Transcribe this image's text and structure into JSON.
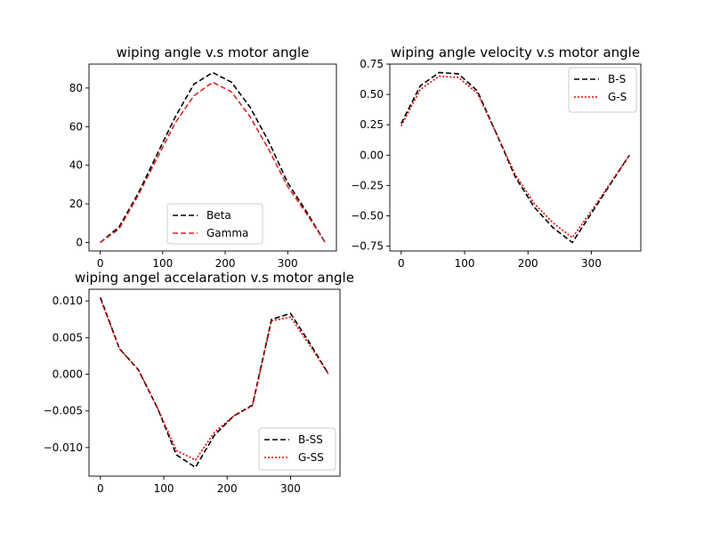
{
  "chart_data": [
    {
      "type": "line",
      "title": "wiping angle v.s motor angle",
      "xlabel": "",
      "ylabel": "",
      "xlim": [
        -18,
        378
      ],
      "ylim": [
        -4.4,
        92.4
      ],
      "xticks": [
        0,
        100,
        200,
        300
      ],
      "yticks": [
        0,
        20,
        40,
        60,
        80
      ],
      "tick_labels_x": [
        "0",
        "100",
        "200",
        "300"
      ],
      "tick_labels_y": [
        "0",
        "20",
        "40",
        "60",
        "80"
      ],
      "legend": "lower-center",
      "x": [
        0,
        30,
        60,
        90,
        120,
        150,
        180,
        210,
        240,
        270,
        300,
        330,
        360
      ],
      "series": [
        {
          "name": "Beta",
          "color": "#000000",
          "dash": "dashed",
          "values": [
            0,
            8,
            25,
            45,
            65,
            82,
            88,
            83,
            70,
            52,
            31,
            16,
            0
          ]
        },
        {
          "name": "Gamma",
          "color": "#d62728",
          "dash": "dashed",
          "values": [
            0,
            7,
            24,
            43,
            62,
            76,
            83,
            78,
            65,
            48,
            29,
            15,
            0
          ]
        }
      ]
    },
    {
      "type": "line",
      "title": "wiping angle velocity v.s motor angle",
      "xlabel": "",
      "ylabel": "",
      "xlim": [
        -18,
        378
      ],
      "ylim": [
        -0.79,
        0.75
      ],
      "xticks": [
        0,
        100,
        200,
        300
      ],
      "yticks": [
        0.75,
        0.5,
        0.25,
        0.0,
        -0.25,
        -0.5,
        -0.75
      ],
      "tick_labels_x": [
        "0",
        "100",
        "200",
        "300"
      ],
      "tick_labels_y": [
        "0.75",
        "0.50",
        "0.25",
        "0.00",
        "−0.25",
        "−0.50",
        "−0.75"
      ],
      "legend": "upper-right",
      "x": [
        0,
        30,
        60,
        90,
        120,
        150,
        180,
        210,
        240,
        270,
        300,
        330,
        360
      ],
      "series": [
        {
          "name": "B-S",
          "color": "#000000",
          "dash": "dashed",
          "values": [
            0.26,
            0.57,
            0.68,
            0.67,
            0.53,
            0.18,
            -0.18,
            -0.43,
            -0.6,
            -0.72,
            -0.48,
            -0.24,
            0.0
          ]
        },
        {
          "name": "G-S",
          "color": "#e00000",
          "dash": "dotted",
          "values": [
            0.24,
            0.54,
            0.65,
            0.64,
            0.51,
            0.18,
            -0.16,
            -0.4,
            -0.56,
            -0.68,
            -0.46,
            -0.23,
            0.0
          ]
        }
      ]
    },
    {
      "type": "line",
      "title": "wiping angel accelaration v.s motor angle",
      "xlabel": "",
      "ylabel": "",
      "xlim": [
        -18,
        378
      ],
      "ylim": [
        -0.0139,
        0.0116
      ],
      "xticks": [
        0,
        100,
        200,
        300
      ],
      "yticks": [
        0.01,
        0.005,
        0.0,
        -0.005,
        -0.01
      ],
      "tick_labels_x": [
        "0",
        "100",
        "200",
        "300"
      ],
      "tick_labels_y": [
        "0.010",
        "0.005",
        "0.000",
        "−0.005",
        "−0.010"
      ],
      "legend": "lower-right",
      "x": [
        0,
        30,
        60,
        90,
        120,
        150,
        180,
        210,
        240,
        270,
        300,
        330,
        360
      ],
      "series": [
        {
          "name": "B-SS",
          "color": "#000000",
          "dash": "dashed",
          "values": [
            0.0105,
            0.0035,
            0.0006,
            -0.0046,
            -0.011,
            -0.0127,
            -0.0083,
            -0.0057,
            -0.0042,
            0.0075,
            0.0083,
            0.0043,
            0.0
          ]
        },
        {
          "name": "G-SS",
          "color": "#e00000",
          "dash": "dotted",
          "values": [
            0.0103,
            0.0035,
            0.0006,
            -0.0046,
            -0.0104,
            -0.0117,
            -0.0079,
            -0.0057,
            -0.0043,
            0.0073,
            0.0078,
            0.004,
            0.0
          ]
        }
      ]
    }
  ]
}
